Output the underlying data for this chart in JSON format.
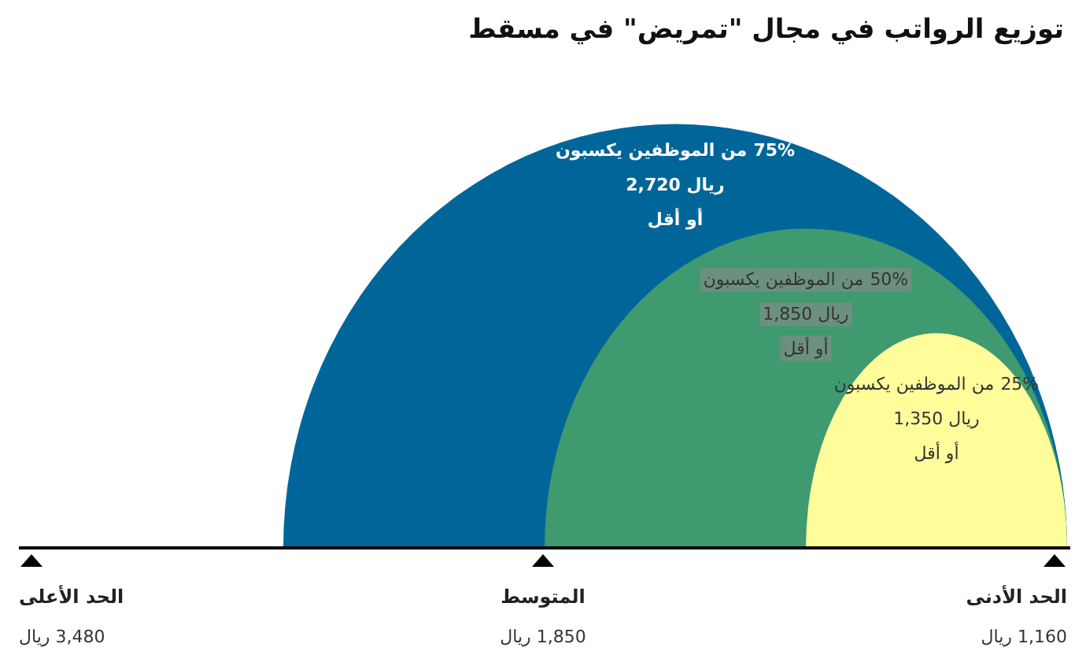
{
  "chart_data": {
    "type": "other",
    "title": "توزيع الرواتب في مجال \"تمريض\" في مسقط",
    "values": [
      75,
      50,
      25
    ],
    "value_labels": [
      "75%",
      "50%",
      "25%"
    ],
    "colors": [
      "#006699",
      "#3f9a6f",
      "#fefd9a"
    ],
    "annotations": [
      "من الموظفين يكسبون\nريال 2,720\nأو أقل",
      "من الموظفين يكسبون\nريال 1,850\nأو أقل",
      "من الموظفين يكسبون\nريال 1,350\nأو أقل",
      "الحد الأعلى\n3,480 ريال",
      "المتوسط\n1,850 ريال",
      "الحد الأدنى\n1,160 ريال"
    ]
  }
}
